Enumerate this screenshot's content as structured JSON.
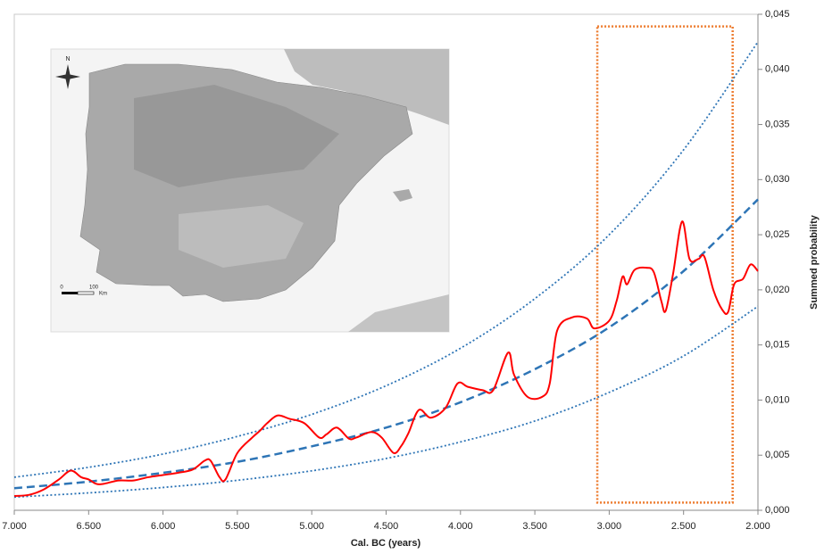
{
  "chart_data": {
    "type": "line",
    "x_label": "Cal. BC (years)",
    "y_label": "Summed probability",
    "xlim": [
      7000,
      2000
    ],
    "ylim": [
      0,
      0.045
    ],
    "xticks": [
      {
        "value": 7000,
        "label": "7.000"
      },
      {
        "value": 6500,
        "label": "6.500"
      },
      {
        "value": 6000,
        "label": "6.000"
      },
      {
        "value": 5500,
        "label": "5.500"
      },
      {
        "value": 5000,
        "label": "5.000"
      },
      {
        "value": 4500,
        "label": "4.500"
      },
      {
        "value": 4000,
        "label": "4.000"
      },
      {
        "value": 3500,
        "label": "3.500"
      },
      {
        "value": 3000,
        "label": "3.000"
      },
      {
        "value": 2500,
        "label": "2.500"
      },
      {
        "value": 2000,
        "label": "2.000"
      }
    ],
    "yticks": [
      {
        "value": 0,
        "label": "0,000"
      },
      {
        "value": 0.005,
        "label": "0,005"
      },
      {
        "value": 0.01,
        "label": "0,010"
      },
      {
        "value": 0.015,
        "label": "0,015"
      },
      {
        "value": 0.02,
        "label": "0,020"
      },
      {
        "value": 0.025,
        "label": "0,025"
      },
      {
        "value": 0.03,
        "label": "0,030"
      },
      {
        "value": 0.035,
        "label": "0,035"
      },
      {
        "value": 0.04,
        "label": "0,040"
      },
      {
        "value": 0.045,
        "label": "0,045"
      }
    ],
    "series": [
      {
        "color": "#ff0000",
        "style": "solid",
        "width": 2,
        "x": [
          7000,
          6900,
          6800,
          6700,
          6620,
          6550,
          6500,
          6450,
          6400,
          6300,
          6200,
          6100,
          6000,
          5900,
          5800,
          5720,
          5680,
          5620,
          5580,
          5500,
          5400,
          5350,
          5300,
          5230,
          5150,
          5050,
          4950,
          4900,
          4830,
          4750,
          4700,
          4600,
          4530,
          4450,
          4400,
          4350,
          4280,
          4200,
          4100,
          4020,
          3950,
          3850,
          3780,
          3680,
          3640,
          3550,
          3450,
          3400,
          3350,
          3250,
          3150,
          3100,
          3000,
          2950,
          2910,
          2880,
          2830,
          2750,
          2700,
          2650,
          2620,
          2570,
          2510,
          2460,
          2400,
          2360,
          2300,
          2240,
          2200,
          2160,
          2100,
          2050,
          2000
        ],
        "values": [
          0.0013,
          0.0014,
          0.0019,
          0.0028,
          0.0036,
          0.003,
          0.0028,
          0.0024,
          0.0024,
          0.0027,
          0.0027,
          0.003,
          0.0032,
          0.0034,
          0.0037,
          0.0045,
          0.0045,
          0.003,
          0.0028,
          0.0052,
          0.0066,
          0.0072,
          0.0079,
          0.0086,
          0.0083,
          0.0079,
          0.0066,
          0.0069,
          0.0075,
          0.0065,
          0.0066,
          0.0071,
          0.0066,
          0.0052,
          0.0058,
          0.007,
          0.0091,
          0.0084,
          0.0093,
          0.0115,
          0.0112,
          0.0109,
          0.0109,
          0.0143,
          0.0123,
          0.0103,
          0.0103,
          0.0115,
          0.0163,
          0.0175,
          0.0174,
          0.0165,
          0.0172,
          0.019,
          0.0212,
          0.0205,
          0.0218,
          0.022,
          0.0216,
          0.019,
          0.0181,
          0.0215,
          0.0262,
          0.0228,
          0.0228,
          0.023,
          0.02,
          0.0182,
          0.018,
          0.0205,
          0.021,
          0.0223,
          0.0217
        ]
      },
      {
        "color": "#2e75b6",
        "style": "dashed",
        "width": 2.5,
        "x": [
          7000,
          6500,
          6000,
          5500,
          5000,
          4500,
          4000,
          3500,
          3000,
          2500,
          2000
        ],
        "values": [
          0.002,
          0.0026,
          0.0034,
          0.0044,
          0.0058,
          0.0075,
          0.0098,
          0.0128,
          0.0166,
          0.0217,
          0.0282
        ]
      },
      {
        "color": "#2e75b6",
        "style": "dotted",
        "width": 1.8,
        "x": [
          7000,
          6500,
          6000,
          5500,
          5000,
          4500,
          4000,
          3500,
          3000,
          2500,
          2000
        ],
        "values": [
          0.0012,
          0.00158,
          0.00207,
          0.00272,
          0.00358,
          0.0047,
          0.0062,
          0.0081,
          0.0107,
          0.014,
          0.0185
        ]
      },
      {
        "color": "#2e75b6",
        "style": "dotted",
        "width": 1.8,
        "x": [
          7000,
          6500,
          6000,
          5500,
          5000,
          4500,
          4000,
          3500,
          3000,
          2500,
          2000
        ],
        "values": [
          0.003,
          0.0039,
          0.0051,
          0.0067,
          0.0087,
          0.0113,
          0.0147,
          0.0192,
          0.025,
          0.0327,
          0.0425
        ]
      }
    ],
    "highlight": {
      "x": [
        3080,
        2170
      ],
      "y": [
        0.0007,
        0.0439
      ],
      "color": "#ed7d31"
    }
  },
  "map_inset": {
    "north": "N",
    "scale_labels": [
      "0",
      "100",
      "Km"
    ]
  }
}
